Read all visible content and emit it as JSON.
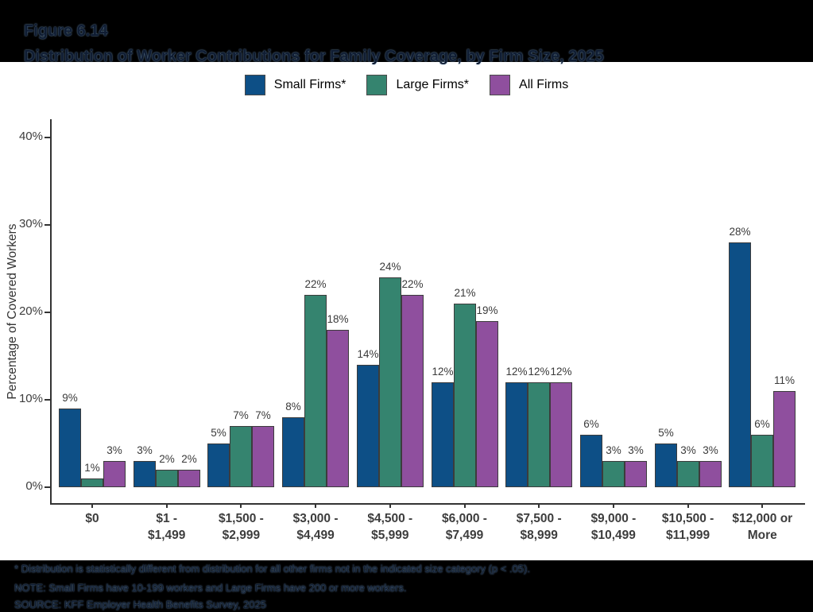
{
  "header": {
    "figure_label": "Figure 6.14",
    "title": "Distribution of Worker Contributions for Family Coverage, by Firm Size, 2025"
  },
  "chart_data": {
    "type": "bar",
    "title": "Distribution of Worker Contributions for Family Coverage, by Firm Size, 2025",
    "categories": [
      "$0",
      "$1 -\n$1,499",
      "$1,500 -\n$2,999",
      "$3,000 -\n$4,499",
      "$4,500 -\n$5,999",
      "$6,000 -\n$7,499",
      "$7,500 -\n$8,999",
      "$9,000 -\n$10,499",
      "$10,500 -\n$11,999",
      "$12,000 or\nMore"
    ],
    "series": [
      {
        "name": "Small Firms*",
        "color": "#0d4f86",
        "values": [
          9,
          3,
          5,
          8,
          14,
          12,
          12,
          6,
          5,
          28
        ]
      },
      {
        "name": "Large Firms*",
        "color": "#35846f",
        "values": [
          1,
          2,
          7,
          22,
          24,
          21,
          12,
          3,
          3,
          6
        ]
      },
      {
        "name": "All Firms",
        "color": "#8f4f9e",
        "values": [
          3,
          2,
          7,
          18,
          22,
          19,
          12,
          3,
          3,
          11
        ]
      }
    ],
    "value_suffix": "%",
    "ylabel": "Percentage of Covered Workers",
    "xlabel": "",
    "yticks": [
      0,
      10,
      20,
      30,
      40
    ],
    "ytick_suffix": "%",
    "ylim": [
      0,
      40
    ],
    "grid": false,
    "legend_position": "top",
    "bar_labels_shown": true
  },
  "footnotes": {
    "line1": "* Distribution is statistically different from distribution for all other firms not in the indicated size category (p < .05).",
    "line2": "NOTE: Small Firms have 10-199 workers and Large Firms have 200 or more workers.",
    "line3": "SOURCE: KFF Employer Health Benefits Survey, 2025"
  },
  "colors": {
    "band_background": "#000000",
    "axis": "#333333",
    "bar_border": "#3c3c3c",
    "tick_label": "#3d3d3d",
    "value_label": "#3a3a3a",
    "small_firms": "#0d4f86",
    "large_firms": "#35846f",
    "all_firms": "#8f4f9e"
  }
}
